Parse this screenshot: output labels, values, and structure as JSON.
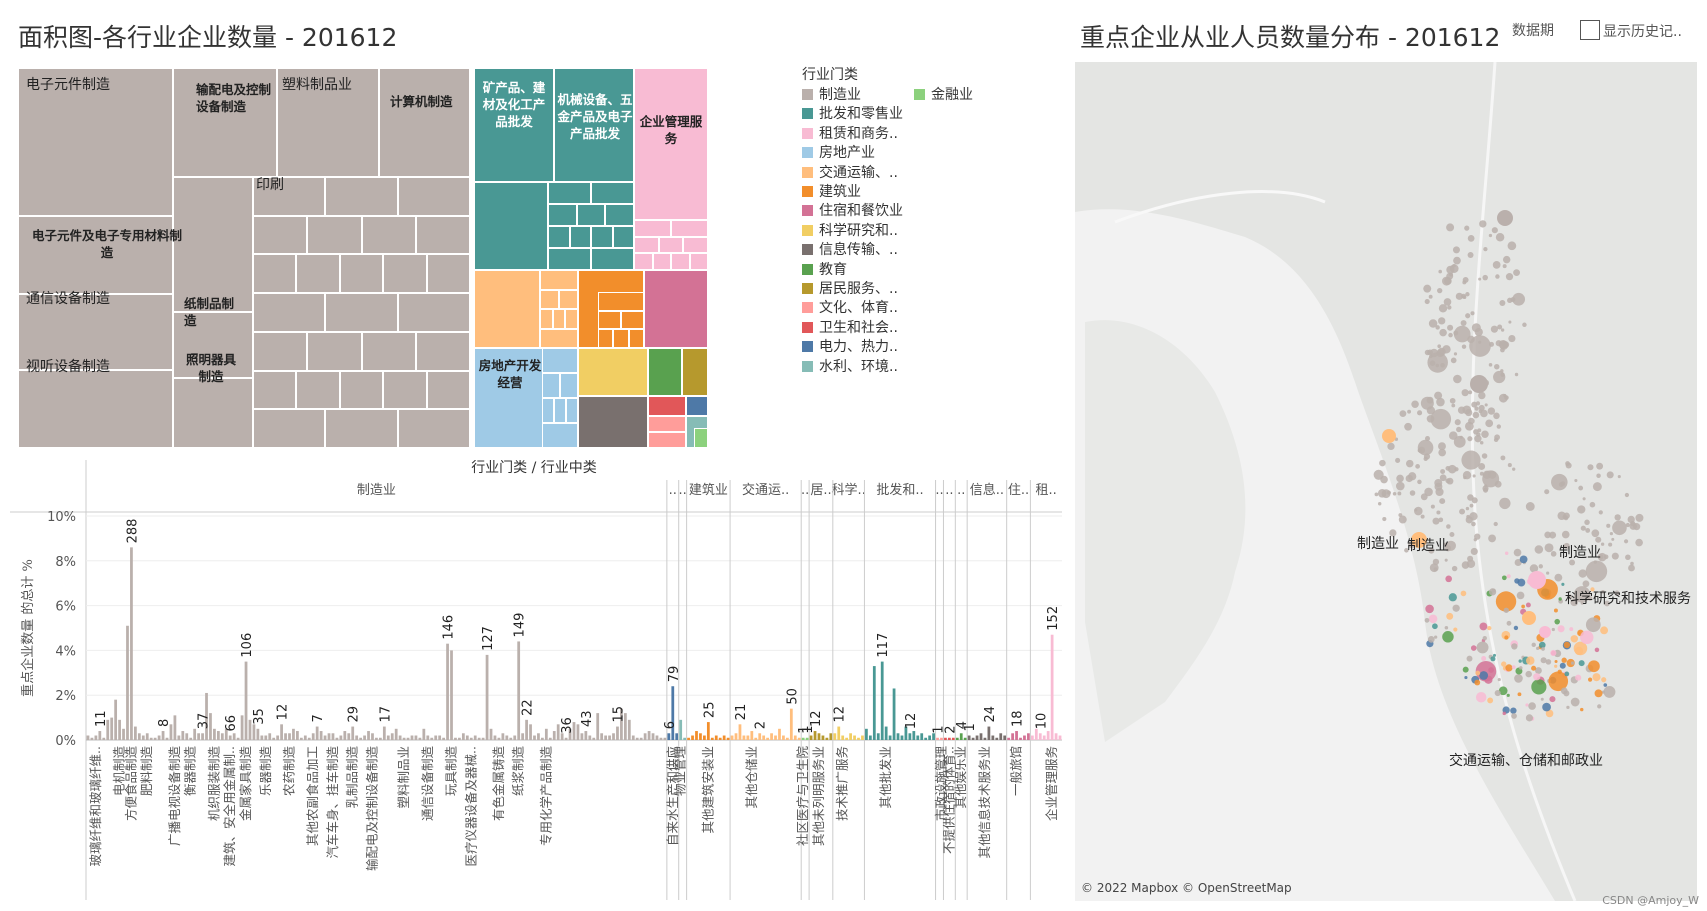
{
  "treemap": {
    "title": "面积图-各行业企业数量 - 201612",
    "labels": {
      "l1": "电子元件制造",
      "l2": "输配电及控制设备制造",
      "l3": "塑料制品业",
      "l4": "计算机制造",
      "l5": "印刷",
      "l6": "电子元件及电子专用材料制造",
      "l7": "通信设备制造",
      "l8": "纸制品制造",
      "l9": "视听设备制造",
      "l10": "照明器具制造",
      "l11": "矿产品、建材及化工产品批发",
      "l12": "机械设备、五金产品及电子产品批发",
      "l13": "企业管理服务",
      "l14": "房地产开发经营"
    }
  },
  "legend": {
    "title": "行业门类",
    "items": [
      {
        "label": "制造业",
        "color": "#bab0ac"
      },
      {
        "label": "批发和零售业",
        "color": "#499894"
      },
      {
        "label": "租赁和商务..",
        "color": "#f8bbd3"
      },
      {
        "label": "房地产业",
        "color": "#9fcae6"
      },
      {
        "label": "交通运输、..",
        "color": "#ffbe7d"
      },
      {
        "label": "建筑业",
        "color": "#f28e2b"
      },
      {
        "label": "住宿和餐饮业",
        "color": "#d37295"
      },
      {
        "label": "科学研究和..",
        "color": "#f1ce63"
      },
      {
        "label": "信息传输、..",
        "color": "#79706e"
      },
      {
        "label": "教育",
        "color": "#59a14f"
      },
      {
        "label": "居民服务、..",
        "color": "#b6992d"
      },
      {
        "label": "文化、体育..",
        "color": "#ff9d9a"
      },
      {
        "label": "卫生和社会..",
        "color": "#e15759"
      },
      {
        "label": "电力、热力..",
        "color": "#4e79a7"
      },
      {
        "label": "水利、环境..",
        "color": "#86bcb6"
      },
      {
        "label": "金融业",
        "color": "#8cd17d"
      }
    ]
  },
  "map": {
    "title": "重点企业从业人员数量分布 - 201612",
    "period_label": "数据期",
    "history_label": "显示历史记..",
    "labels": [
      "制造业",
      "制造业",
      "制造业",
      "科学研究和技术服务",
      "交通运输、仓储和邮政业"
    ],
    "attribution": "© 2022 Mapbox © OpenStreetMap"
  },
  "credit": "CSDN @Amjoy_W",
  "chart_data": {
    "type": "bar",
    "header": "行业门类 / 行业中类",
    "ylabel": "重点企业数量 的总计 %",
    "ylim": [
      0,
      10
    ],
    "yticks": [
      "0%",
      "2%",
      "4%",
      "6%",
      "8%",
      "10%"
    ],
    "groups": [
      {
        "name": "制造业",
        "color": "#bab0ac",
        "values": [
          0.2,
          0.1,
          0.2,
          0.4,
          0.1,
          0.9,
          1.0,
          1.8,
          0.9,
          0.5,
          5.1,
          8.6,
          0.6,
          0.3,
          0.2,
          0.3,
          0.1,
          0.1,
          0.2,
          0.4,
          0.1,
          0.7,
          1.1,
          0.2,
          0.4,
          0.3,
          0.1,
          0.5,
          0.3,
          0.3,
          2.1,
          1.2,
          0.5,
          0.4,
          0.3,
          0.5,
          0.2,
          0.3,
          0.1,
          1.1,
          3.5,
          0.9,
          0.7,
          0.5,
          0.2,
          0.2,
          0.3,
          0.1,
          0.2,
          0.7,
          0.3,
          0.3,
          0.5,
          0.4,
          0.1,
          0.2,
          0.1,
          0.3,
          0.6,
          0.4,
          0.2,
          0.3,
          0.3,
          0.1,
          0.2,
          0.4,
          0.3,
          0.6,
          0.2,
          0.1,
          0.2,
          0.4,
          0.3,
          0.1,
          0.1,
          0.6,
          0.2,
          0.3,
          0.5,
          0.2,
          0.1,
          0.1,
          0.2,
          0.2,
          0.1,
          0.5,
          0.2,
          0.1,
          0.2,
          0.2,
          0.1,
          4.3,
          4.0,
          0.1,
          0.1,
          0.3,
          0.2,
          0.1,
          0.2,
          0.1,
          0.1,
          3.8,
          0.5,
          0.2,
          0.1,
          0.3,
          0.2,
          0.1,
          0.2,
          4.4,
          0.3,
          0.9,
          0.7,
          0.2,
          0.3,
          0.1,
          0.5,
          0.1,
          0.4,
          0.7,
          0.3,
          0.1,
          0.5,
          0.8,
          0.7,
          0.3,
          0.4,
          0.2,
          0.1,
          1.2,
          0.3,
          0.2,
          0.2,
          0.3,
          0.6,
          1.4,
          1.2,
          0.9,
          0.2,
          0.1,
          0.1,
          0.3,
          0.4,
          0.3,
          0.2,
          0.1,
          0.1
        ]
      },
      {
        "name": "..",
        "color": "#4e79a7",
        "values": [
          0.3,
          2.4,
          0.3
        ]
      },
      {
        "name": "..",
        "color": "#86bcb6",
        "values": [
          0.9,
          0.1
        ]
      },
      {
        "name": "建筑业",
        "color": "#f28e2b",
        "values": [
          0.1,
          0.2,
          0.4,
          0.3,
          0.2,
          0.8,
          0.1,
          0.2,
          0.1,
          0.2,
          0.1
        ]
      },
      {
        "name": "交通运..",
        "color": "#ffbe7d",
        "values": [
          0.2,
          0.3,
          0.7,
          0.2,
          0.2,
          0.4,
          0.1,
          0.3,
          0.2,
          0.1,
          0.3,
          0.2,
          0.5,
          0.2,
          0.1,
          1.4,
          0.2,
          0.1
        ]
      },
      {
        "name": "..",
        "color": "#8cd17d",
        "values": [
          0.1,
          0.1
        ]
      },
      {
        "name": "居..",
        "color": "#b6992d",
        "values": [
          0.2,
          0.4,
          0.3,
          0.2,
          0.1,
          0.3
        ]
      },
      {
        "name": "科学..",
        "color": "#f1ce63",
        "values": [
          0.3,
          0.6,
          0.2,
          0.1,
          0.3,
          0.2,
          0.1,
          0.2
        ]
      },
      {
        "name": "批发和..",
        "color": "#499894",
        "values": [
          0.5,
          0.2,
          3.3,
          0.3,
          3.5,
          0.6,
          0.2,
          2.3,
          0.3,
          0.2,
          0.6,
          0.3,
          0.4,
          0.2,
          0.3,
          0.1,
          0.2,
          0.3
        ]
      },
      {
        "name": "..",
        "color": "#ff9d9a",
        "values": [
          0.1,
          0.1
        ]
      },
      {
        "name": "..",
        "color": "#e15759",
        "values": [
          0.1,
          0.1,
          0.1
        ]
      },
      {
        "name": "..",
        "color": "#59a14f",
        "values": [
          0.1,
          0.3,
          0.1
        ]
      },
      {
        "name": "信息..",
        "color": "#79706e",
        "values": [
          0.2,
          0.1,
          0.2,
          0.3,
          0.1,
          0.6,
          0.2,
          0.1,
          0.3,
          0.2
        ]
      },
      {
        "name": "住..",
        "color": "#d37295",
        "values": [
          0.1,
          0.3,
          0.4,
          0.1,
          0.2,
          0.3
        ]
      },
      {
        "name": "租..",
        "color": "#f8bbd3",
        "values": [
          0.2,
          0.5,
          0.3,
          0.2,
          0.4,
          4.7,
          0.3,
          0.2
        ]
      }
    ],
    "data_labels": [
      {
        "g": 0,
        "i": 3,
        "text": "11"
      },
      {
        "g": 0,
        "i": 11,
        "text": "288"
      },
      {
        "g": 0,
        "i": 19,
        "text": "8"
      },
      {
        "g": 0,
        "i": 29,
        "text": "37"
      },
      {
        "g": 0,
        "i": 36,
        "text": "66"
      },
      {
        "g": 0,
        "i": 40,
        "text": "106"
      },
      {
        "g": 0,
        "i": 43,
        "text": "35"
      },
      {
        "g": 0,
        "i": 49,
        "text": "12"
      },
      {
        "g": 0,
        "i": 58,
        "text": "7"
      },
      {
        "g": 0,
        "i": 67,
        "text": "29"
      },
      {
        "g": 0,
        "i": 75,
        "text": "17"
      },
      {
        "g": 0,
        "i": 91,
        "text": "146"
      },
      {
        "g": 0,
        "i": 101,
        "text": "127"
      },
      {
        "g": 0,
        "i": 109,
        "text": "149"
      },
      {
        "g": 0,
        "i": 111,
        "text": "22"
      },
      {
        "g": 0,
        "i": 121,
        "text": "36"
      },
      {
        "g": 0,
        "i": 126,
        "text": "43"
      },
      {
        "g": 0,
        "i": 134,
        "text": "15"
      },
      {
        "g": 1,
        "i": 0,
        "text": "6"
      },
      {
        "g": 1,
        "i": 1,
        "text": "79"
      },
      {
        "g": 3,
        "i": 5,
        "text": "25"
      },
      {
        "g": 4,
        "i": 2,
        "text": "21"
      },
      {
        "g": 4,
        "i": 7,
        "text": "2"
      },
      {
        "g": 4,
        "i": 15,
        "text": "50"
      },
      {
        "g": 5,
        "i": 0,
        "text": "1"
      },
      {
        "g": 5,
        "i": 1,
        "text": "1"
      },
      {
        "g": 6,
        "i": 1,
        "text": "12"
      },
      {
        "g": 7,
        "i": 1,
        "text": "12"
      },
      {
        "g": 8,
        "i": 4,
        "text": "117"
      },
      {
        "g": 8,
        "i": 11,
        "text": "12"
      },
      {
        "g": 9,
        "i": 0,
        "text": "1"
      },
      {
        "g": 10,
        "i": 1,
        "text": "2"
      },
      {
        "g": 11,
        "i": 1,
        "text": "4"
      },
      {
        "g": 12,
        "i": 0,
        "text": "1"
      },
      {
        "g": 12,
        "i": 5,
        "text": "24"
      },
      {
        "g": 13,
        "i": 2,
        "text": "18"
      },
      {
        "g": 14,
        "i": 2,
        "text": "10"
      },
      {
        "g": 14,
        "i": 5,
        "text": "152"
      }
    ],
    "category_labels": [
      {
        "g": 0,
        "i": 2,
        "text": "玻璃纤维和玻璃纤维.."
      },
      {
        "g": 0,
        "i": 8,
        "text": "电机制造"
      },
      {
        "g": 0,
        "i": 11,
        "text": "方便食品制造"
      },
      {
        "g": 0,
        "i": 15,
        "text": "肥料制造"
      },
      {
        "g": 0,
        "i": 22,
        "text": "广播电视设备制造"
      },
      {
        "g": 0,
        "i": 26,
        "text": "衡器制造"
      },
      {
        "g": 0,
        "i": 32,
        "text": "机织服装制造"
      },
      {
        "g": 0,
        "i": 36,
        "text": "建筑、安全用金属制.."
      },
      {
        "g": 0,
        "i": 40,
        "text": "金属家具制造"
      },
      {
        "g": 0,
        "i": 45,
        "text": "乐器制造"
      },
      {
        "g": 0,
        "i": 51,
        "text": "农药制造"
      },
      {
        "g": 0,
        "i": 57,
        "text": "其他农副食品加工"
      },
      {
        "g": 0,
        "i": 62,
        "text": "汽车车身、挂车制造"
      },
      {
        "g": 0,
        "i": 67,
        "text": "乳制品制造"
      },
      {
        "g": 0,
        "i": 72,
        "text": "输配电及控制设备制造"
      },
      {
        "g": 0,
        "i": 80,
        "text": "塑料制品业"
      },
      {
        "g": 0,
        "i": 86,
        "text": "通信设备制造"
      },
      {
        "g": 0,
        "i": 92,
        "text": "玩具制造"
      },
      {
        "g": 0,
        "i": 97,
        "text": "医疗仪器设备及器械.."
      },
      {
        "g": 0,
        "i": 104,
        "text": "有色金属铸造"
      },
      {
        "g": 0,
        "i": 109,
        "text": "纸浆制造"
      },
      {
        "g": 0,
        "i": 116,
        "text": "专用化学产品制造"
      },
      {
        "g": 1,
        "i": 1,
        "text": "自来水生产和供应"
      },
      {
        "g": 2,
        "i": 0,
        "text": "物业管理"
      },
      {
        "g": 3,
        "i": 5,
        "text": "其他建筑安装业"
      },
      {
        "g": 4,
        "i": 5,
        "text": "其他仓储业"
      },
      {
        "g": 5,
        "i": 0,
        "text": "社区医疗与卫生院"
      },
      {
        "g": 6,
        "i": 2,
        "text": "其他未列明服务业"
      },
      {
        "g": 7,
        "i": 2,
        "text": "技术推广服务"
      },
      {
        "g": 8,
        "i": 5,
        "text": "其他批发业"
      },
      {
        "g": 9,
        "i": 1,
        "text": "市政设施管理"
      },
      {
        "g": 10,
        "i": 1,
        "text": "不提供住宿的体育.."
      },
      {
        "g": 11,
        "i": 1,
        "text": "其他娱乐业"
      },
      {
        "g": 12,
        "i": 4,
        "text": "其他信息技术服务业"
      },
      {
        "g": 13,
        "i": 2,
        "text": "一般旅馆"
      },
      {
        "g": 14,
        "i": 5,
        "text": "企业管理服务"
      }
    ]
  }
}
